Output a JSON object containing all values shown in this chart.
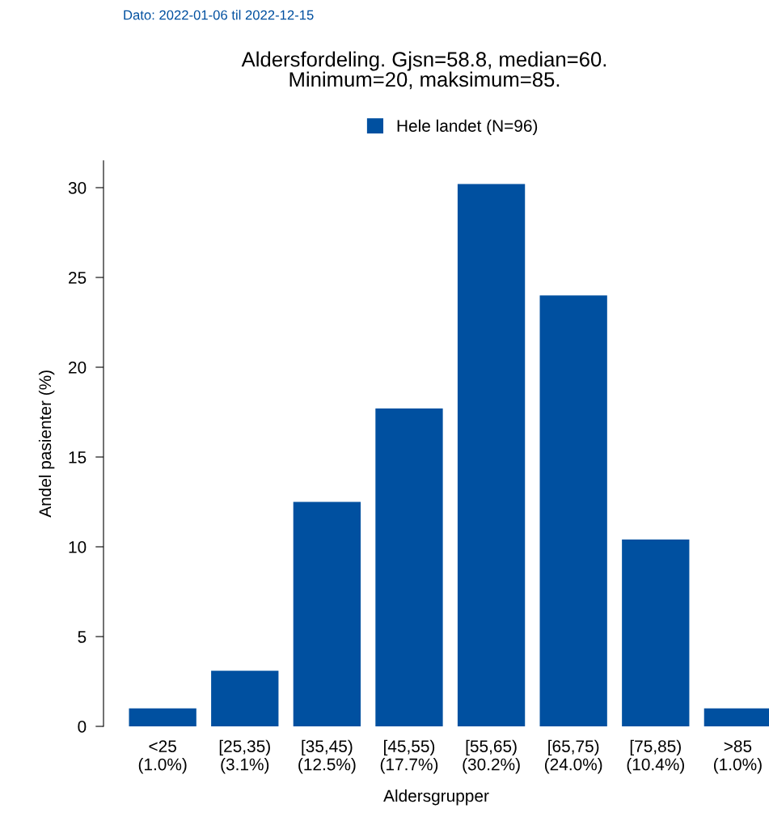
{
  "chart_data": {
    "type": "bar",
    "title": "Aldersfordeling. Gjsn=58.8, median=60.\nMinimum=20, maksimum=85.",
    "xlabel": "Aldersgrupper",
    "ylabel": "Andel pasienter (%)",
    "categories": [
      "<25\n(1.0%)",
      "[25,35)\n(3.1%)",
      "[35,45)\n(12.5%)",
      "[45,55)\n(17.7%)",
      "[55,65)\n(30.2%)",
      "[65,75)\n(24.0%)",
      "[75,85)\n(10.4%)",
      ">85\n(1.0%)"
    ],
    "series": [
      {
        "name": "Hele landet (N=96)",
        "color": "#0050a0",
        "values": [
          1.0,
          3.1,
          12.5,
          17.7,
          30.2,
          24.0,
          10.4,
          1.0
        ]
      }
    ],
    "ylim": [
      0,
      31.5
    ],
    "yticks": [
      0,
      5,
      10,
      15,
      20,
      25,
      30
    ],
    "grid": false,
    "legend": "top",
    "annotations": [
      "Dato: 2022-01-06 til 2022-12-15"
    ]
  }
}
